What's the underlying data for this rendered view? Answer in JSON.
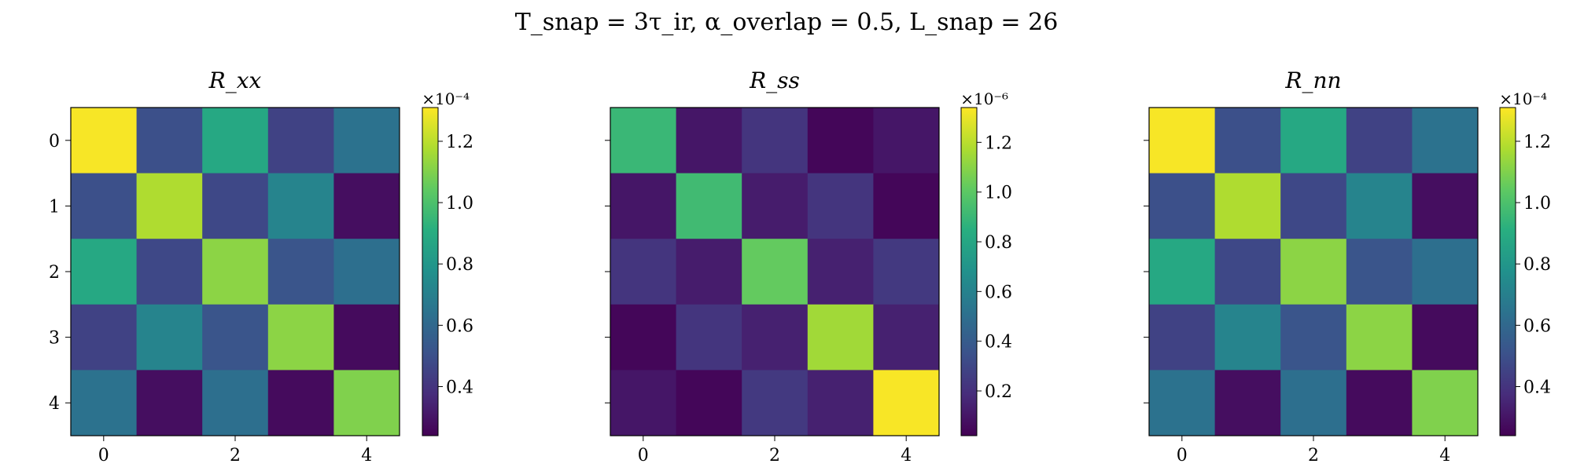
{
  "figure": {
    "suptitle": "T_snap = 3τ_ir,   α_overlap = 0.5,   L_snap = 26"
  },
  "chart_data": [
    {
      "type": "heatmap",
      "title": "R_xx",
      "x_ticks": [
        0,
        2,
        4
      ],
      "y_ticks": [
        0,
        1,
        2,
        3,
        4
      ],
      "show_y_tick_labels": true,
      "colormap": "viridis",
      "colorbar": {
        "range": [
          0.24,
          1.31
        ],
        "ticks": [
          0.4,
          0.6,
          0.8,
          1.0,
          1.2
        ],
        "tick_labels": [
          "0.4",
          "0.6",
          "0.8",
          "1.0",
          "1.2"
        ],
        "offset_text": "×10⁻⁴"
      },
      "matrix": [
        [
          1.3,
          0.5,
          0.88,
          0.45,
          0.64
        ],
        [
          0.5,
          1.18,
          0.47,
          0.72,
          0.28
        ],
        [
          0.88,
          0.47,
          1.12,
          0.52,
          0.63
        ],
        [
          0.45,
          0.72,
          0.52,
          1.12,
          0.27
        ],
        [
          0.64,
          0.28,
          0.63,
          0.27,
          1.1
        ]
      ]
    },
    {
      "type": "heatmap",
      "title": "R_ss",
      "x_ticks": [
        0,
        2,
        4
      ],
      "y_ticks": [
        0,
        1,
        2,
        3,
        4
      ],
      "show_y_tick_labels": false,
      "colormap": "viridis",
      "colorbar": {
        "range": [
          0.02,
          1.34
        ],
        "ticks": [
          0.2,
          0.4,
          0.6,
          0.8,
          1.0,
          1.2
        ],
        "tick_labels": [
          "0.2",
          "0.4",
          "0.6",
          "0.8",
          "1.0",
          "1.2"
        ],
        "offset_text": "×10⁻⁶"
      },
      "matrix": [
        [
          0.9,
          0.1,
          0.22,
          0.04,
          0.1
        ],
        [
          0.1,
          0.92,
          0.12,
          0.22,
          0.04
        ],
        [
          0.22,
          0.12,
          1.02,
          0.14,
          0.24
        ],
        [
          0.04,
          0.22,
          0.14,
          1.15,
          0.14
        ],
        [
          0.1,
          0.04,
          0.24,
          0.14,
          1.33
        ]
      ]
    },
    {
      "type": "heatmap",
      "title": "R_nn",
      "x_ticks": [
        0,
        2,
        4
      ],
      "y_ticks": [
        0,
        1,
        2,
        3,
        4
      ],
      "show_y_tick_labels": false,
      "colormap": "viridis",
      "colorbar": {
        "range": [
          0.24,
          1.31
        ],
        "ticks": [
          0.4,
          0.6,
          0.8,
          1.0,
          1.2
        ],
        "tick_labels": [
          "0.4",
          "0.6",
          "0.8",
          "1.0",
          "1.2"
        ],
        "offset_text": "×10⁻⁴"
      },
      "matrix": [
        [
          1.3,
          0.5,
          0.88,
          0.45,
          0.64
        ],
        [
          0.5,
          1.18,
          0.47,
          0.72,
          0.28
        ],
        [
          0.88,
          0.47,
          1.12,
          0.52,
          0.63
        ],
        [
          0.45,
          0.72,
          0.52,
          1.12,
          0.27
        ],
        [
          0.64,
          0.28,
          0.63,
          0.27,
          1.1
        ]
      ]
    }
  ]
}
